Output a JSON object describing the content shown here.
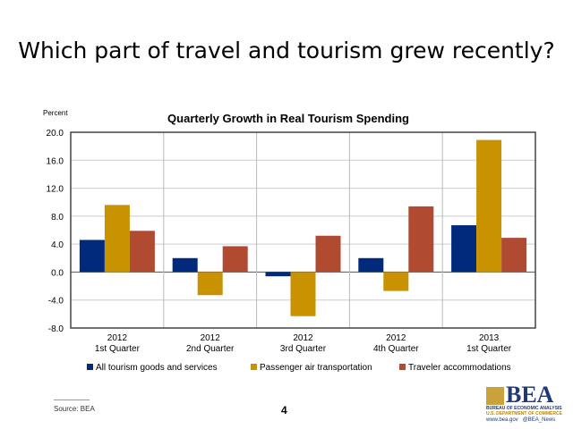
{
  "slide": {
    "title": "Which part of travel and tourism grew recently?",
    "source": "Source: BEA",
    "page": "4",
    "logo": {
      "name": "BEA",
      "line1": "BUREAU OF ECONOMIC ANALYSIS",
      "line2": "U.S. DEPARTMENT OF COMMERCE",
      "website": "www.bea.gov",
      "twitter": "@BEA_News"
    }
  },
  "chart_data": {
    "type": "bar",
    "title": "Quarterly Growth in Real Tourism Spending",
    "ylabel": "Percent",
    "xlabel": "",
    "ylim": [
      -8,
      20
    ],
    "yticks": [
      "20.0",
      "16.0",
      "12.0",
      "8.0",
      "4.0",
      "0.0",
      "-4.0",
      "-8.0"
    ],
    "ytick_values": [
      20,
      16,
      12,
      8,
      4,
      0,
      -4,
      -8
    ],
    "categories": [
      [
        "2012",
        "1st Quarter"
      ],
      [
        "2012",
        "2nd Quarter"
      ],
      [
        "2012",
        "3rd Quarter"
      ],
      [
        "2012",
        "4th Quarter"
      ],
      [
        "2013",
        "1st Quarter"
      ]
    ],
    "series": [
      {
        "name": "All tourism goods and services",
        "color": "#012a7c",
        "values": [
          4.6,
          2.0,
          -0.6,
          2.0,
          6.7
        ]
      },
      {
        "name": "Passenger air transportation",
        "color": "#c89200",
        "values": [
          9.6,
          -3.3,
          -6.3,
          -2.7,
          18.9
        ]
      },
      {
        "name": "Traveler accommodations",
        "color": "#b04a30",
        "values": [
          5.9,
          3.7,
          5.2,
          9.4,
          4.9
        ]
      }
    ],
    "grid": true,
    "legend": "bottom"
  }
}
